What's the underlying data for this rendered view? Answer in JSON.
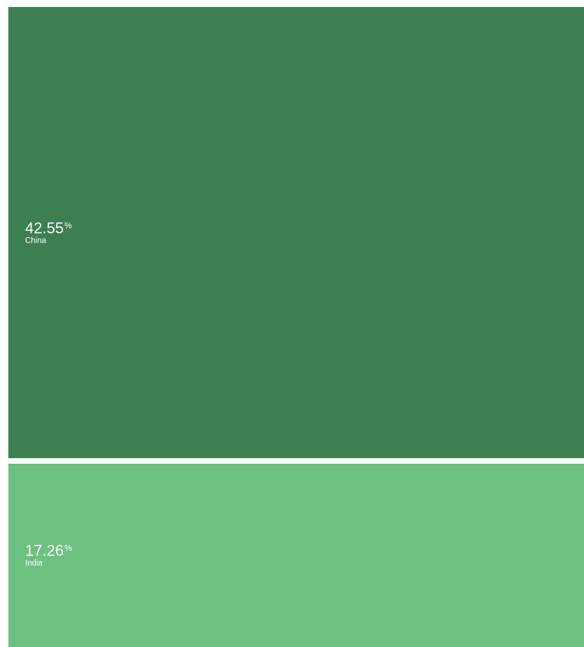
{
  "chart_data": {
    "type": "treemap",
    "unit": "%",
    "items": [
      {
        "name": "China",
        "value": 42.55,
        "label": "42.55",
        "color": "#3d7f51"
      },
      {
        "name": "India",
        "value": 17.26,
        "label": "17.26",
        "color": "#6cc080"
      }
    ]
  }
}
